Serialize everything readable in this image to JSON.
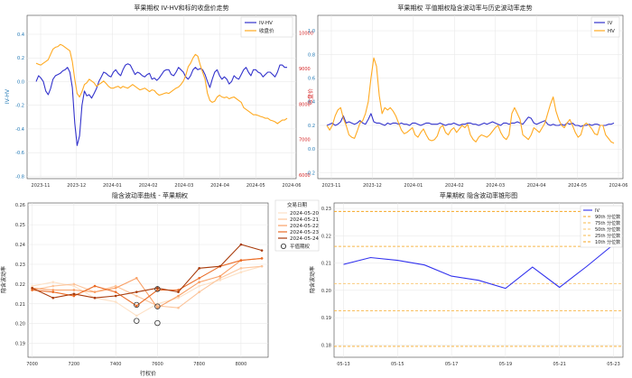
{
  "chart_data": [
    {
      "id": "p1",
      "type": "line",
      "title": "苹果期权 IV-HV和标的收盘价走势",
      "xlabel": "",
      "ylabel": "IV-HV",
      "y2label": "收盘价",
      "ylim": [
        -0.82,
        0.56
      ],
      "y2lim": [
        5900,
        10500
      ],
      "yticks": [
        -0.8,
        -0.6,
        -0.4,
        -0.2,
        0.0,
        0.2,
        0.4
      ],
      "y2ticks": [
        6000,
        7000,
        8000,
        9000,
        10000
      ],
      "xticks": [
        "2023-11",
        "2023-12",
        "2024-01",
        "2024-02",
        "2024-03",
        "2024-04",
        "2024-05",
        "2024-06"
      ],
      "grid": true,
      "legend_position": "top-right",
      "colors": {
        "iv_hv": "#3333cc",
        "close": "#ffaa22",
        "y1axis": "#1f77b4",
        "y2axis": "#d62728"
      },
      "series": [
        {
          "name": "IV-HV",
          "axis": "left",
          "values": [
            0.0,
            0.05,
            0.03,
            0.0,
            -0.08,
            -0.11,
            -0.06,
            0.02,
            0.05,
            0.06,
            0.07,
            0.09,
            0.1,
            0.12,
            0.08,
            -0.05,
            -0.35,
            -0.54,
            -0.46,
            -0.2,
            -0.08,
            -0.12,
            -0.11,
            -0.14,
            -0.1,
            -0.06,
            0.0,
            0.04,
            0.08,
            0.07,
            0.05,
            0.04,
            0.08,
            0.1,
            0.07,
            0.05,
            0.1,
            0.14,
            0.15,
            0.14,
            0.1,
            0.06,
            0.08,
            0.07,
            0.05,
            0.04,
            0.06,
            0.07,
            0.02,
            0.03,
            0.01,
            0.03,
            0.06,
            0.09,
            0.1,
            0.1,
            0.06,
            0.05,
            0.08,
            0.12,
            0.1,
            0.08,
            0.04,
            0.02,
            0.05,
            0.1,
            0.12,
            0.1,
            0.11,
            0.1,
            0.06,
            0.0,
            -0.05,
            0.02,
            0.08,
            0.1,
            0.05,
            0.02,
            0.04,
            0.02,
            -0.02,
            0.0,
            0.05,
            0.03,
            0.02,
            0.06,
            0.1,
            0.12,
            0.08,
            0.05,
            0.1,
            0.1,
            0.08,
            0.07,
            0.04,
            0.06,
            0.08,
            0.08,
            0.06,
            0.04,
            0.08,
            0.14,
            0.14,
            0.12,
            0.12
          ]
        },
        {
          "name": "收盘价",
          "axis": "right",
          "values": [
            9150,
            9120,
            9100,
            9150,
            9200,
            9250,
            9400,
            9550,
            9600,
            9620,
            9680,
            9650,
            9600,
            9550,
            9500,
            9200,
            8700,
            8300,
            8200,
            8350,
            8550,
            8600,
            8700,
            8650,
            8600,
            8500,
            8550,
            8600,
            8650,
            8580,
            8500,
            8450,
            8450,
            8480,
            8500,
            8450,
            8500,
            8470,
            8450,
            8500,
            8550,
            8500,
            8450,
            8400,
            8420,
            8450,
            8400,
            8350,
            8400,
            8380,
            8300,
            8250,
            8270,
            8300,
            8320,
            8300,
            8350,
            8400,
            8450,
            8480,
            8550,
            8650,
            8800,
            9050,
            9150,
            9300,
            9400,
            9350,
            9100,
            8900,
            8700,
            8300,
            8100,
            8050,
            8080,
            8200,
            8250,
            8200,
            8180,
            8200,
            8150,
            8180,
            8200,
            8150,
            8100,
            8050,
            7900,
            7850,
            7800,
            7750,
            7700,
            7700,
            7680,
            7650,
            7630,
            7600,
            7600,
            7550,
            7530,
            7500,
            7450,
            7500,
            7550,
            7550,
            7600
          ]
        }
      ]
    },
    {
      "id": "p2",
      "type": "line",
      "title": "苹果期权 平值期权隐含波动率与历史波动率走势",
      "xlabel": "",
      "ylabel": "",
      "ylim": [
        -0.25,
        1.13
      ],
      "yticks": [
        -0.2,
        0.0,
        0.2,
        0.4,
        0.6,
        0.8,
        1.0
      ],
      "xticks": [
        "2023-11",
        "2023-12",
        "2024-01",
        "2024-02",
        "2024-03",
        "2024-04",
        "2024-05",
        "2024-06"
      ],
      "grid": true,
      "legend_position": "top-right",
      "colors": {
        "iv": "#3333cc",
        "hv": "#ffaa22"
      },
      "series": [
        {
          "name": "IV",
          "values": [
            0.2,
            0.21,
            0.22,
            0.2,
            0.21,
            0.23,
            0.28,
            0.22,
            0.23,
            0.22,
            0.21,
            0.22,
            0.24,
            0.22,
            0.21,
            0.25,
            0.3,
            0.23,
            0.22,
            0.22,
            0.21,
            0.2,
            0.22,
            0.21,
            0.22,
            0.22,
            0.21,
            0.22,
            0.21,
            0.21,
            0.2,
            0.22,
            0.22,
            0.21,
            0.2,
            0.21,
            0.22,
            0.22,
            0.21,
            0.21,
            0.21,
            0.22,
            0.21,
            0.2,
            0.21,
            0.21,
            0.22,
            0.21,
            0.2,
            0.21,
            0.21,
            0.22,
            0.22,
            0.21,
            0.21,
            0.2,
            0.21,
            0.22,
            0.21,
            0.22,
            0.23,
            0.22,
            0.21,
            0.2,
            0.22,
            0.22,
            0.21,
            0.22,
            0.22,
            0.23,
            0.22,
            0.21,
            0.24,
            0.27,
            0.26,
            0.22,
            0.21,
            0.22,
            0.23,
            0.24,
            0.21,
            0.2,
            0.21,
            0.2,
            0.2,
            0.21,
            0.2,
            0.22,
            0.21,
            0.22,
            0.2,
            0.2,
            0.19,
            0.2,
            0.2,
            0.21,
            0.2,
            0.21,
            0.21,
            0.2,
            0.2,
            0.2,
            0.21,
            0.21,
            0.22
          ]
        },
        {
          "name": "HV",
          "values": [
            0.2,
            0.16,
            0.2,
            0.28,
            0.33,
            0.35,
            0.26,
            0.2,
            0.12,
            0.1,
            0.09,
            0.15,
            0.22,
            0.24,
            0.3,
            0.4,
            0.6,
            0.77,
            0.7,
            0.45,
            0.3,
            0.35,
            0.33,
            0.35,
            0.32,
            0.28,
            0.22,
            0.16,
            0.13,
            0.14,
            0.16,
            0.18,
            0.12,
            0.1,
            0.14,
            0.17,
            0.12,
            0.08,
            0.07,
            0.08,
            0.11,
            0.18,
            0.2,
            0.14,
            0.12,
            0.16,
            0.18,
            0.14,
            0.17,
            0.2,
            0.18,
            0.21,
            0.12,
            0.08,
            0.06,
            0.1,
            0.12,
            0.11,
            0.1,
            0.12,
            0.15,
            0.18,
            0.2,
            0.14,
            0.1,
            0.08,
            0.12,
            0.3,
            0.35,
            0.3,
            0.25,
            0.12,
            0.1,
            0.08,
            0.12,
            0.18,
            0.16,
            0.14,
            0.18,
            0.22,
            0.3,
            0.38,
            0.44,
            0.32,
            0.25,
            0.2,
            0.18,
            0.22,
            0.25,
            0.2,
            0.14,
            0.1,
            0.12,
            0.2,
            0.22,
            0.2,
            0.17,
            0.13,
            0.12,
            0.2,
            0.2,
            0.12,
            0.09,
            0.06,
            0.05
          ]
        }
      ]
    },
    {
      "id": "p3",
      "type": "line",
      "title": "隐含波动率曲线 - 苹果期权",
      "xlabel": "行权价",
      "ylabel": "隐含波动率",
      "xlim": [
        6980,
        8130
      ],
      "ylim": [
        0.183,
        0.261
      ],
      "xticks": [
        7000,
        7200,
        7400,
        7600,
        7800,
        8000
      ],
      "yticks": [
        0.19,
        0.2,
        0.21,
        0.22,
        0.23,
        0.24,
        0.25,
        0.26
      ],
      "grid": true,
      "legend_title": "交易日期",
      "legend_position": "top-right",
      "atm_label": "平值期权",
      "series": [
        {
          "name": "2024-05-20",
          "color": "#fde1c6",
          "x": [
            7000,
            7100,
            7200,
            7300,
            7400,
            7500,
            7600,
            7700,
            7800,
            7900,
            8000,
            8100
          ],
          "y": [
            0.219,
            0.221,
            0.219,
            0.213,
            0.211,
            0.204,
            0.21,
            0.213,
            0.219,
            0.222,
            0.226,
            0.229
          ]
        },
        {
          "name": "2024-05-21",
          "color": "#fcc49a",
          "x": [
            7000,
            7100,
            7200,
            7300,
            7400,
            7500,
            7600,
            7700,
            7800,
            7900,
            8000,
            8100
          ],
          "y": [
            0.217,
            0.219,
            0.22,
            0.216,
            0.219,
            0.214,
            0.209,
            0.208,
            0.216,
            0.223,
            0.228,
            0.229
          ]
        },
        {
          "name": "2024-05-22",
          "color": "#f9a066",
          "x": [
            7000,
            7100,
            7200,
            7300,
            7400,
            7500,
            7600,
            7700,
            7800,
            7900,
            8000,
            8100
          ],
          "y": [
            0.218,
            0.217,
            0.217,
            0.216,
            0.218,
            0.223,
            0.208,
            0.214,
            0.221,
            0.224,
            0.232,
            0.233
          ]
        },
        {
          "name": "2024-05-23",
          "color": "#ea6a24",
          "x": [
            7000,
            7100,
            7200,
            7300,
            7400,
            7500,
            7600,
            7700,
            7800,
            7900,
            8000,
            8100
          ],
          "y": [
            0.217,
            0.216,
            0.214,
            0.219,
            0.216,
            0.209,
            0.217,
            0.217,
            0.223,
            0.229,
            0.232,
            0.233
          ]
        },
        {
          "name": "2024-05-24",
          "color": "#a83a0a",
          "x": [
            7000,
            7100,
            7200,
            7300,
            7400,
            7500,
            7600,
            7700,
            7800,
            7900,
            8000,
            8100
          ],
          "y": [
            0.218,
            0.213,
            0.215,
            0.213,
            0.214,
            0.216,
            0.218,
            0.216,
            0.228,
            0.229,
            0.24,
            0.237
          ]
        }
      ],
      "atm_points": [
        {
          "x": 7500,
          "y": 0.2095,
          "series": "2024-05-20"
        },
        {
          "x": 7500,
          "y": 0.2014,
          "series": "2024-05-21"
        },
        {
          "x": 7600,
          "y": 0.2087,
          "series": "2024-05-22"
        },
        {
          "x": 7600,
          "y": 0.2175,
          "series": "2024-05-23"
        },
        {
          "x": 7600,
          "y": 0.2003,
          "series": "2024-05-24"
        }
      ]
    },
    {
      "id": "p4",
      "type": "line",
      "title": "苹果期权 隐含波动率锥形图",
      "xlabel": "",
      "ylabel": "隐含波动率",
      "xlim": [
        -0.35,
        10.35
      ],
      "ylim": [
        0.1755,
        0.232
      ],
      "xticks": [
        "05-13",
        "05-15",
        "05-17",
        "05-19",
        "05-21",
        "05-23"
      ],
      "xtick_positions": [
        0,
        2,
        4,
        6,
        8,
        10
      ],
      "yticks": [
        0.18,
        0.19,
        0.2,
        0.21,
        0.22,
        0.23
      ],
      "grid": true,
      "legend_position": "top-right",
      "series": [
        {
          "name": "IV",
          "color": "#3333ee",
          "x": [
            0,
            1,
            2,
            3,
            4,
            5,
            6,
            7,
            8,
            9,
            10
          ],
          "y": [
            0.2095,
            0.212,
            0.211,
            0.2093,
            0.2052,
            0.2037,
            0.2007,
            0.2085,
            0.2011,
            0.2087,
            0.2168
          ]
        }
      ],
      "percentiles": [
        {
          "name": "90th 分位数",
          "value": 0.2289,
          "color": "#f5a623"
        },
        {
          "name": "75th 分位数",
          "value": 0.2161,
          "color": "#f7b84b"
        },
        {
          "name": "50th 分位数",
          "value": 0.2025,
          "color": "#f8c46c"
        },
        {
          "name": "25th 分位数",
          "value": 0.1925,
          "color": "#f7b84b"
        },
        {
          "name": "10th 分位数",
          "value": 0.1795,
          "color": "#f5a623"
        }
      ]
    }
  ]
}
